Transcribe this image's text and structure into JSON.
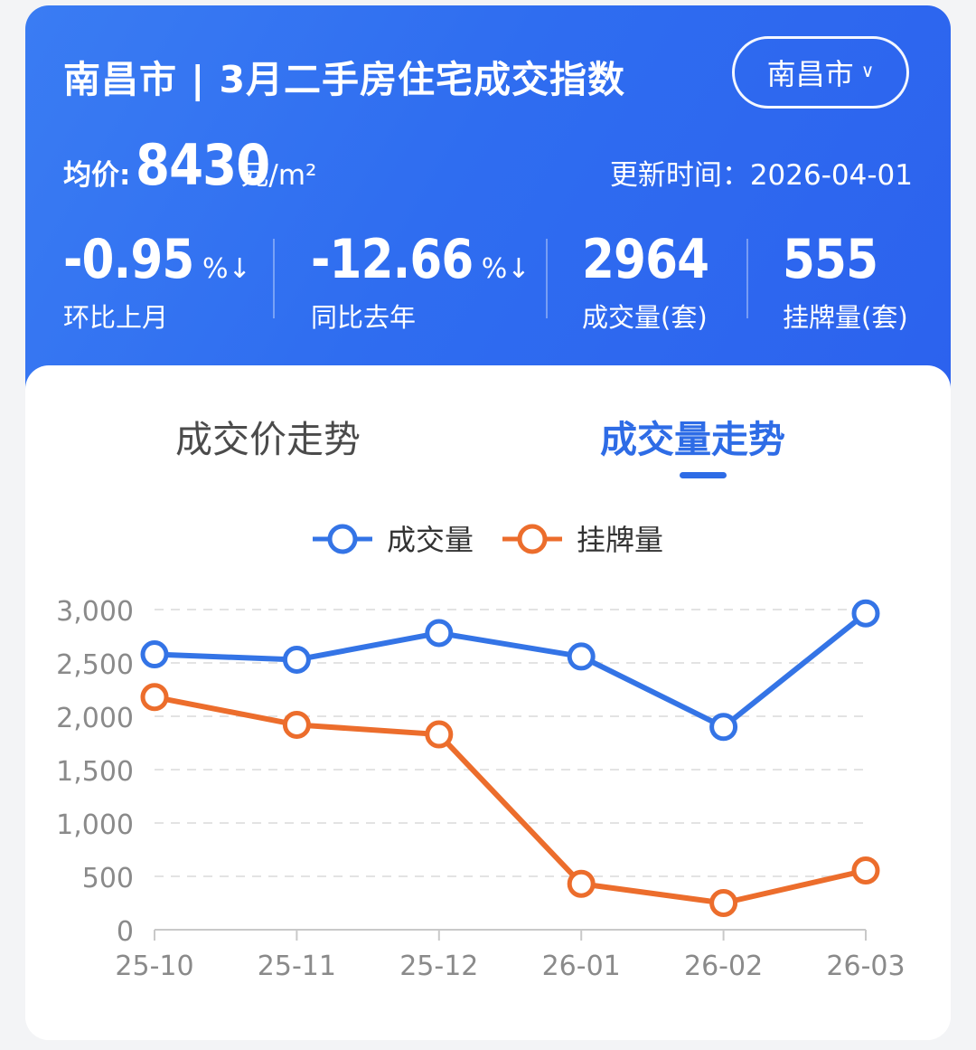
{
  "header": {
    "title": "南昌市 | 3月二手房住宅成交指数",
    "city_selector": "南昌市",
    "avg_price_label": "均价:",
    "avg_price_value": "8430",
    "avg_price_unit": "元/m²",
    "update_time": "更新时间：2026-04-01"
  },
  "stats": [
    {
      "value": "-0.95",
      "suffix": "%↓",
      "label": "环比上月"
    },
    {
      "value": "-12.66",
      "suffix": "%↓",
      "label": "同比去年"
    },
    {
      "value": "2964",
      "suffix": "",
      "label": "成交量(套)"
    },
    {
      "value": "555",
      "suffix": "",
      "label": "挂牌量(套)"
    }
  ],
  "tabs": [
    {
      "label": "成交价走势",
      "active": false
    },
    {
      "label": "成交量走势",
      "active": true
    }
  ],
  "colors": {
    "accent": "#2e6ce6",
    "series_volume": "#3474e6",
    "series_listing": "#ec6d2c"
  },
  "chart_data": {
    "type": "line",
    "categories": [
      "25-10",
      "25-11",
      "25-12",
      "26-01",
      "26-02",
      "26-03"
    ],
    "series": [
      {
        "name": "成交量",
        "values": [
          2580,
          2530,
          2780,
          2560,
          1900,
          2964
        ]
      },
      {
        "name": "挂牌量",
        "values": [
          2180,
          1920,
          1830,
          430,
          250,
          555
        ]
      }
    ],
    "ylim": [
      0,
      3000
    ],
    "yticks": [
      "3,000",
      "2,500",
      "2,000",
      "1,500",
      "1,000",
      "500",
      "0"
    ],
    "grid": true,
    "legend": "top-center"
  }
}
